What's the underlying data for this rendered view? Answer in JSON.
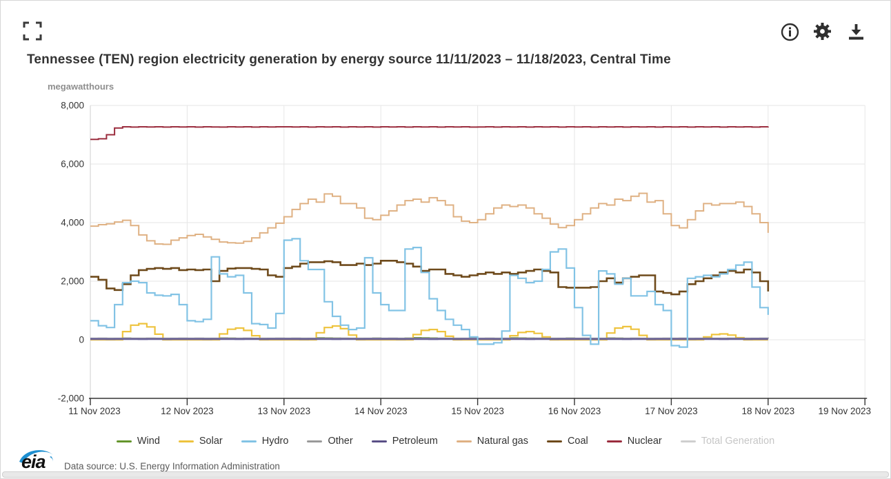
{
  "header": {
    "title": "Tennessee (TEN) region electricity generation by energy source 11/11/2023 – 11/18/2023, Central Time"
  },
  "toolbar": {
    "icons": [
      "fullscreen-icon",
      "info-icon",
      "gear-icon",
      "download-icon"
    ]
  },
  "footer": {
    "logo_text": "eia",
    "source": "Data source: U.S. Energy Information Administration",
    "logo_blue": "#1e8fd0"
  },
  "legend": {
    "items": [
      {
        "id": "wind",
        "label": "Wind",
        "color": "#64952c",
        "muted": false
      },
      {
        "id": "solar",
        "label": "Solar",
        "color": "#eec33e",
        "muted": false
      },
      {
        "id": "hydro",
        "label": "Hydro",
        "color": "#82c3e5",
        "muted": false
      },
      {
        "id": "other",
        "label": "Other",
        "color": "#9a9a9a",
        "muted": false
      },
      {
        "id": "petroleum",
        "label": "Petroleum",
        "color": "#594f86",
        "muted": false
      },
      {
        "id": "natural_gas",
        "label": "Natural gas",
        "color": "#dfb183",
        "muted": false
      },
      {
        "id": "coal",
        "label": "Coal",
        "color": "#6e4a1b",
        "muted": false
      },
      {
        "id": "nuclear",
        "label": "Nuclear",
        "color": "#9b2d3e",
        "muted": false
      },
      {
        "id": "total_generation",
        "label": "Total Generation",
        "color": "#cfcfcf",
        "muted": true
      }
    ]
  },
  "chart_data": {
    "type": "line",
    "title": "Tennessee (TEN) region electricity generation by energy source 11/11/2023 – 11/18/2023, Central Time",
    "ylabel": "megawatthours",
    "xlabel": "",
    "ylim": [
      -2000,
      8000
    ],
    "grid": true,
    "legend_position": "bottom",
    "x_start": "11 Nov 2023 00:00 Central Time",
    "x_end": "18 Nov 2023 00:00 Central Time",
    "sample_interval_hours": 2,
    "x_tick_labels": [
      "11 Nov 2023",
      "12 Nov 2023",
      "13 Nov 2023",
      "14 Nov 2023",
      "15 Nov 2023",
      "16 Nov 2023",
      "17 Nov 2023",
      "18 Nov 2023",
      "19 Nov 2023"
    ],
    "y_ticks": [
      {
        "value": 8000,
        "label": "8,000"
      },
      {
        "value": 6000,
        "label": "6,000"
      },
      {
        "value": 4000,
        "label": "4,000"
      },
      {
        "value": 2000,
        "label": "2,000"
      },
      {
        "value": 0,
        "label": "0"
      },
      {
        "value": -2000,
        "label": "-2,000"
      }
    ],
    "paint_order": [
      "wind",
      "solar",
      "other",
      "petroleum",
      "natural_gas",
      "coal",
      "hydro",
      "nuclear"
    ],
    "series": [
      {
        "id": "wind",
        "name": "Wind",
        "color": "#64952c",
        "width": 1.5,
        "values": [
          40,
          35,
          30,
          45,
          60,
          55,
          50,
          40,
          35,
          30,
          40,
          50,
          45,
          40,
          35,
          50,
          65,
          60,
          55,
          45,
          40,
          35,
          45,
          55,
          50,
          45,
          40,
          55,
          70,
          65,
          60,
          50,
          45,
          40,
          50,
          60,
          55,
          50,
          45,
          60,
          75,
          70,
          65,
          55,
          50,
          45,
          55,
          65,
          50,
          45,
          40,
          55,
          70,
          65,
          60,
          50,
          45,
          40,
          50,
          60,
          45,
          40,
          35,
          50,
          65,
          60,
          55,
          45,
          40,
          35,
          45,
          55,
          40,
          35,
          30,
          45,
          60,
          55,
          50,
          40,
          35,
          30,
          40,
          50,
          45
        ]
      },
      {
        "id": "solar",
        "name": "Solar",
        "color": "#eec33e",
        "width": 2.2,
        "values": [
          0,
          0,
          0,
          0,
          280,
          500,
          550,
          440,
          190,
          0,
          0,
          0,
          0,
          0,
          0,
          0,
          200,
          360,
          400,
          320,
          140,
          0,
          0,
          0,
          0,
          0,
          0,
          0,
          240,
          420,
          470,
          380,
          160,
          0,
          0,
          0,
          0,
          0,
          0,
          0,
          180,
          320,
          350,
          280,
          120,
          0,
          0,
          0,
          0,
          0,
          0,
          0,
          140,
          250,
          280,
          220,
          100,
          0,
          0,
          0,
          0,
          0,
          0,
          0,
          230,
          400,
          450,
          360,
          150,
          0,
          0,
          0,
          0,
          0,
          0,
          0,
          100,
          180,
          200,
          160,
          70,
          0,
          0,
          0,
          0
        ]
      },
      {
        "id": "other",
        "name": "Other",
        "color": "#9a9a9a",
        "width": 2.5,
        "values": [
          45,
          46,
          44,
          45,
          47,
          45,
          44,
          46,
          45,
          44,
          45,
          46,
          45,
          46,
          44,
          45,
          47,
          45,
          44,
          46,
          45,
          44,
          45,
          46,
          45,
          46,
          44,
          45,
          47,
          45,
          44,
          46,
          45,
          44,
          45,
          46,
          45,
          46,
          44,
          45,
          47,
          45,
          44,
          46,
          45,
          44,
          45,
          46,
          45,
          46,
          44,
          45,
          47,
          45,
          44,
          46,
          45,
          44,
          45,
          46,
          45,
          46,
          44,
          45,
          47,
          45,
          44,
          46,
          45,
          44,
          45,
          46,
          45,
          46,
          44,
          45,
          47,
          45,
          44,
          46,
          45,
          44,
          45,
          46,
          45
        ]
      },
      {
        "id": "petroleum",
        "name": "Petroleum",
        "color": "#6b639b",
        "width": 2.8,
        "values": [
          25,
          26,
          24,
          25,
          27,
          25,
          24,
          26,
          25,
          24,
          25,
          26,
          25,
          26,
          24,
          25,
          27,
          25,
          24,
          26,
          25,
          24,
          25,
          26,
          25,
          26,
          24,
          25,
          27,
          25,
          24,
          26,
          25,
          24,
          25,
          26,
          25,
          26,
          24,
          25,
          27,
          25,
          24,
          26,
          25,
          24,
          25,
          26,
          25,
          26,
          24,
          25,
          27,
          25,
          24,
          26,
          25,
          24,
          25,
          26,
          25,
          26,
          24,
          25,
          27,
          25,
          24,
          26,
          25,
          24,
          25,
          26,
          25,
          26,
          24,
          25,
          27,
          25,
          24,
          26,
          25,
          24,
          25,
          26,
          25
        ]
      },
      {
        "id": "natural_gas",
        "name": "Natural gas",
        "color": "#dfb183",
        "width": 2,
        "values": [
          3880,
          3930,
          3960,
          4020,
          4080,
          3900,
          3580,
          3380,
          3270,
          3260,
          3400,
          3480,
          3560,
          3600,
          3510,
          3430,
          3340,
          3310,
          3300,
          3360,
          3480,
          3650,
          3820,
          3980,
          4200,
          4450,
          4650,
          4800,
          4700,
          4980,
          4900,
          4650,
          4650,
          4500,
          4150,
          4100,
          4250,
          4400,
          4600,
          4750,
          4800,
          4700,
          4850,
          4750,
          4600,
          4200,
          4050,
          4000,
          4100,
          4300,
          4500,
          4600,
          4550,
          4600,
          4500,
          4300,
          4150,
          3950,
          3830,
          3900,
          4100,
          4300,
          4500,
          4650,
          4600,
          4800,
          4750,
          4900,
          5000,
          4700,
          4750,
          4300,
          3900,
          3820,
          4100,
          4400,
          4650,
          4600,
          4650,
          4650,
          4700,
          4550,
          4300,
          4000,
          3650
        ]
      },
      {
        "id": "coal",
        "name": "Coal",
        "color": "#6e4a1b",
        "width": 2.6,
        "values": [
          2150,
          2050,
          1750,
          1700,
          1900,
          2200,
          2380,
          2420,
          2450,
          2420,
          2450,
          2380,
          2400,
          2380,
          2400,
          2000,
          2350,
          2430,
          2450,
          2450,
          2420,
          2400,
          2200,
          2150,
          2450,
          2500,
          2600,
          2650,
          2650,
          2680,
          2650,
          2550,
          2550,
          2600,
          2550,
          2600,
          2700,
          2700,
          2650,
          2600,
          2500,
          2350,
          2400,
          2400,
          2250,
          2200,
          2150,
          2200,
          2250,
          2300,
          2250,
          2300,
          2250,
          2300,
          2350,
          2400,
          2350,
          2300,
          1800,
          1780,
          1780,
          1780,
          1800,
          2000,
          2100,
          1950,
          2100,
          2150,
          2200,
          2200,
          1650,
          1600,
          1550,
          1650,
          1900,
          2000,
          2100,
          2200,
          2300,
          2350,
          2300,
          2400,
          2300,
          2000,
          1650
        ]
      },
      {
        "id": "hydro",
        "name": "Hydro",
        "color": "#82c3e5",
        "width": 2.2,
        "values": [
          650,
          480,
          420,
          1200,
          1950,
          2000,
          1950,
          1600,
          1520,
          1500,
          1550,
          1200,
          650,
          620,
          700,
          2830,
          2250,
          2150,
          2200,
          1600,
          550,
          520,
          400,
          900,
          3400,
          3450,
          2700,
          2400,
          2400,
          1300,
          800,
          500,
          350,
          400,
          2800,
          1600,
          1200,
          1000,
          1000,
          3100,
          3150,
          2300,
          1400,
          1000,
          700,
          500,
          350,
          100,
          -150,
          -150,
          -100,
          300,
          2200,
          2100,
          1950,
          2000,
          2400,
          3000,
          3100,
          2450,
          1100,
          150,
          -150,
          2350,
          2250,
          1900,
          2100,
          1500,
          1500,
          1650,
          1200,
          1000,
          -200,
          -250,
          2100,
          2150,
          2200,
          2150,
          2250,
          2400,
          2550,
          2650,
          1800,
          1100,
          850
        ]
      },
      {
        "id": "nuclear",
        "name": "Nuclear",
        "color": "#9b2d3e",
        "width": 2,
        "values": [
          6840,
          6860,
          7000,
          7230,
          7270,
          7260,
          7270,
          7265,
          7270,
          7260,
          7270,
          7265,
          7270,
          7260,
          7270,
          7265,
          7260,
          7270,
          7265,
          7270,
          7260,
          7270,
          7265,
          7270,
          7270,
          7265,
          7270,
          7260,
          7270,
          7265,
          7270,
          7260,
          7270,
          7265,
          7270,
          7260,
          7270,
          7265,
          7270,
          7260,
          7270,
          7265,
          7270,
          7260,
          7270,
          7265,
          7270,
          7260,
          7265,
          7270,
          7260,
          7270,
          7265,
          7270,
          7260,
          7270,
          7265,
          7270,
          7260,
          7270,
          7265,
          7270,
          7260,
          7270,
          7265,
          7270,
          7260,
          7270,
          7265,
          7270,
          7260,
          7270,
          7265,
          7270,
          7260,
          7270,
          7265,
          7270,
          7260,
          7270,
          7265,
          7270,
          7260,
          7270,
          7280
        ]
      }
    ]
  }
}
